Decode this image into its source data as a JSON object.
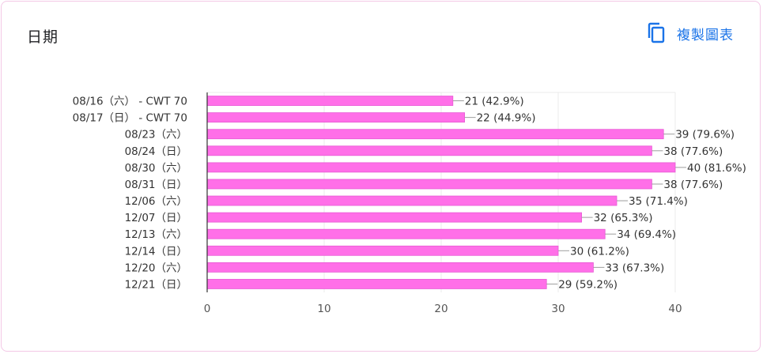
{
  "card": {
    "title": "日期",
    "copy_label": "複製圖表",
    "copy_icon": "copy-icon"
  },
  "colors": {
    "bar": "#ff6fe8",
    "bar_stroke": "#e85ad4",
    "accent": "#1a73e8",
    "grid": "#ebebeb",
    "axis": "#333333",
    "text": "#333333"
  },
  "chart_data": {
    "type": "bar",
    "orientation": "horizontal",
    "categories": [
      "08/16（六） - CWT 70",
      "08/17（日） - CWT 70",
      "08/23（六）",
      "08/24（日）",
      "08/30（六）",
      "08/31（日）",
      "12/06（六）",
      "12/07（日）",
      "12/13（六）",
      "12/14（日）",
      "12/20（六）",
      "12/21（日）"
    ],
    "values": [
      21,
      22,
      39,
      38,
      40,
      38,
      35,
      32,
      34,
      30,
      33,
      29
    ],
    "data_labels": [
      "21 (42.9%)",
      "22 (44.9%)",
      "39 (79.6%)",
      "38 (77.6%)",
      "40 (81.6%)",
      "38 (77.6%)",
      "35 (71.4%)",
      "32 (65.3%)",
      "34 (69.4%)",
      "30 (61.2%)",
      "33 (67.3%)",
      "29 (59.2%)"
    ],
    "xlim": [
      0,
      40
    ],
    "xticks": [
      0,
      10,
      20,
      30,
      40
    ],
    "grid": true,
    "legend": "none"
  }
}
